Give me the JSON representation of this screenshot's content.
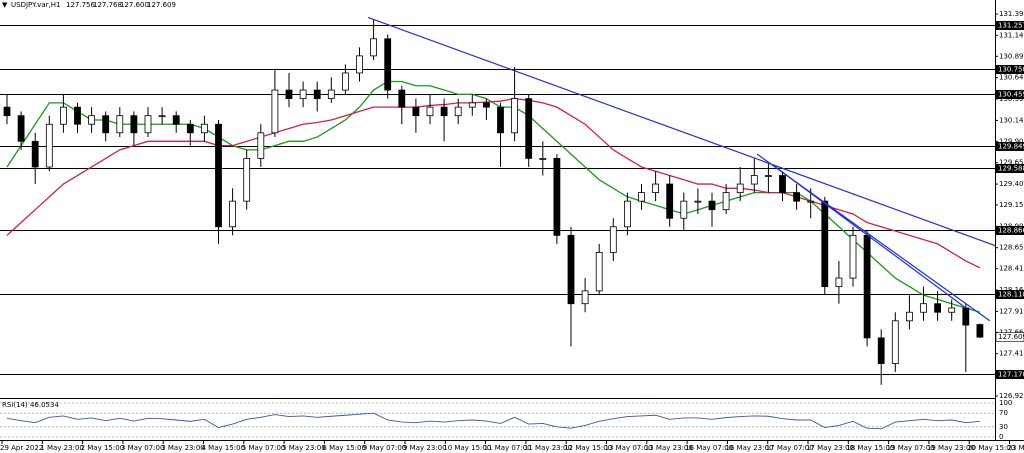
{
  "chart_data": {
    "type": "candlestick",
    "title": "USDJPY.var,H1",
    "ohlc_labels": [
      "127.756",
      "127.768",
      "127.600",
      "127.609"
    ],
    "candles": [
      [
        130.3,
        130.45,
        130.1,
        130.2
      ],
      [
        130.2,
        130.25,
        129.8,
        129.9
      ],
      [
        129.9,
        130.0,
        129.4,
        129.6
      ],
      [
        129.6,
        130.2,
        129.55,
        130.1
      ],
      [
        130.1,
        130.45,
        130.0,
        130.3
      ],
      [
        130.3,
        130.35,
        130.0,
        130.1
      ],
      [
        130.1,
        130.3,
        130.0,
        130.2
      ],
      [
        130.2,
        130.25,
        129.9,
        130.0
      ],
      [
        130.0,
        130.3,
        129.95,
        130.2
      ],
      [
        130.2,
        130.25,
        129.85,
        130.0
      ],
      [
        130.0,
        130.3,
        129.95,
        130.2
      ],
      [
        130.2,
        130.3,
        130.1,
        130.2
      ],
      [
        130.2,
        130.25,
        130.0,
        130.1
      ],
      [
        130.1,
        130.15,
        129.85,
        130.0
      ],
      [
        130.0,
        130.2,
        129.9,
        130.1
      ],
      [
        130.1,
        130.15,
        128.7,
        128.9
      ],
      [
        128.9,
        129.35,
        128.8,
        129.2
      ],
      [
        129.2,
        129.8,
        129.1,
        129.7
      ],
      [
        129.7,
        130.1,
        129.6,
        130.0
      ],
      [
        130.0,
        130.75,
        129.95,
        130.5
      ],
      [
        130.5,
        130.7,
        130.3,
        130.4
      ],
      [
        130.4,
        130.6,
        130.3,
        130.5
      ],
      [
        130.5,
        130.6,
        130.25,
        130.4
      ],
      [
        130.4,
        130.65,
        130.35,
        130.5
      ],
      [
        130.5,
        130.8,
        130.45,
        130.7
      ],
      [
        130.7,
        131.0,
        130.6,
        130.9
      ],
      [
        130.9,
        131.33,
        130.85,
        131.1
      ],
      [
        131.1,
        131.15,
        130.4,
        130.5
      ],
      [
        130.5,
        130.55,
        130.1,
        130.3
      ],
      [
        130.3,
        130.4,
        130.0,
        130.2
      ],
      [
        130.2,
        130.45,
        130.1,
        130.3
      ],
      [
        130.3,
        130.4,
        129.9,
        130.2
      ],
      [
        130.2,
        130.4,
        130.1,
        130.3
      ],
      [
        130.3,
        130.45,
        130.2,
        130.35
      ],
      [
        130.35,
        130.4,
        130.15,
        130.3
      ],
      [
        130.3,
        130.35,
        129.6,
        130.0
      ],
      [
        130.0,
        130.77,
        129.9,
        130.4
      ],
      [
        130.4,
        130.45,
        129.6,
        129.7
      ],
      [
        129.7,
        129.9,
        129.5,
        129.7
      ],
      [
        129.7,
        129.75,
        128.7,
        128.8
      ],
      [
        128.8,
        128.9,
        127.5,
        128.0
      ],
      [
        128.0,
        128.3,
        127.9,
        128.15
      ],
      [
        128.15,
        128.7,
        128.1,
        128.6
      ],
      [
        128.6,
        129.0,
        128.5,
        128.9
      ],
      [
        128.9,
        129.3,
        128.8,
        129.2
      ],
      [
        129.2,
        129.4,
        129.1,
        129.3
      ],
      [
        129.3,
        129.55,
        129.2,
        129.4
      ],
      [
        129.4,
        129.5,
        128.9,
        129.0
      ],
      [
        129.0,
        129.3,
        128.85,
        129.2
      ],
      [
        129.2,
        129.35,
        129.05,
        129.2
      ],
      [
        129.2,
        129.3,
        128.9,
        129.1
      ],
      [
        129.1,
        129.4,
        129.05,
        129.3
      ],
      [
        129.3,
        129.6,
        129.2,
        129.4
      ],
      [
        129.4,
        129.7,
        129.3,
        129.5
      ],
      [
        129.5,
        129.65,
        129.3,
        129.5
      ],
      [
        129.5,
        129.55,
        129.2,
        129.3
      ],
      [
        129.3,
        129.4,
        129.1,
        129.2
      ],
      [
        129.2,
        129.35,
        129.0,
        129.2
      ],
      [
        129.2,
        129.25,
        128.1,
        128.2
      ],
      [
        128.2,
        128.5,
        128.0,
        128.3
      ],
      [
        128.3,
        128.9,
        128.2,
        128.8
      ],
      [
        128.8,
        128.85,
        127.5,
        127.6
      ],
      [
        127.6,
        127.7,
        127.05,
        127.3
      ],
      [
        127.3,
        127.9,
        127.2,
        127.8
      ],
      [
        127.8,
        128.1,
        127.7,
        127.9
      ],
      [
        127.9,
        128.2,
        127.8,
        128.0
      ],
      [
        128.0,
        128.15,
        127.8,
        127.9
      ],
      [
        127.9,
        128.05,
        127.8,
        127.95
      ],
      [
        127.95,
        128.0,
        127.2,
        127.75
      ],
      [
        127.756,
        127.768,
        127.6,
        127.609
      ]
    ],
    "series": [
      {
        "color": "#1a9a1a",
        "values": [
          129.6,
          129.85,
          130.1,
          130.35,
          130.35,
          130.25,
          130.15,
          130.15,
          130.1,
          130.1,
          130.1,
          130.1,
          130.1,
          130.1,
          130.05,
          129.95,
          129.85,
          129.8,
          129.8,
          129.85,
          129.9,
          129.9,
          129.95,
          130.05,
          130.15,
          130.3,
          130.5,
          130.6,
          130.6,
          130.55,
          130.55,
          130.5,
          130.45,
          130.45,
          130.4,
          130.3,
          130.3,
          130.2,
          130.05,
          129.9,
          129.75,
          129.6,
          129.45,
          129.35,
          129.25,
          129.2,
          129.15,
          129.1,
          129.05,
          129.1,
          129.15,
          129.2,
          129.25,
          129.3,
          129.3,
          129.3,
          129.3,
          129.2,
          129.05,
          128.9,
          128.75,
          128.6,
          128.45,
          128.3,
          128.2,
          128.1,
          128.05,
          128.0,
          127.95,
          127.9
        ]
      },
      {
        "color": "#d0204a",
        "values": [
          128.8,
          128.95,
          129.1,
          129.25,
          129.4,
          129.5,
          129.6,
          129.7,
          129.8,
          129.85,
          129.9,
          129.9,
          129.9,
          129.9,
          129.9,
          129.85,
          129.85,
          129.9,
          129.95,
          130.0,
          130.05,
          130.1,
          130.12,
          130.15,
          130.2,
          130.25,
          130.3,
          130.3,
          130.3,
          130.3,
          130.32,
          130.33,
          130.35,
          130.35,
          130.36,
          130.37,
          130.4,
          130.38,
          130.35,
          130.3,
          130.2,
          130.1,
          129.95,
          129.8,
          129.7,
          129.6,
          129.55,
          129.5,
          129.45,
          129.4,
          129.4,
          129.35,
          129.35,
          129.33,
          129.3,
          129.3,
          129.25,
          129.2,
          129.15,
          129.1,
          129.05,
          128.95,
          128.9,
          128.85,
          128.8,
          128.75,
          128.7,
          128.6,
          128.5,
          128.42
        ]
      }
    ],
    "trendlines": [
      {
        "x": [
          25.6,
          70.1
        ],
        "y": [
          131.35,
          128.68
        ]
      },
      {
        "x": [
          53.2,
          69.7
        ],
        "y": [
          129.75,
          127.8
        ]
      },
      {
        "x": [
          54.5,
          68.0
        ],
        "y": [
          129.6,
          127.95
        ]
      }
    ],
    "trendline_color": "#1f2fd8",
    "levels": [
      131.257,
      {
        "value": 130.75,
        "label": "130.750"
      },
      130.459,
      129.849,
      129.588,
      128.866,
      128.118,
      127.178
    ],
    "ylim": [
      126.92,
      131.39
    ],
    "yticks": [
      {
        "value": 131.39,
        "label": "131.390"
      },
      {
        "value": 131.14,
        "label": "131.140"
      },
      130.895,
      130.645,
      130.395,
      130.145,
      {
        "value": 129.9,
        "label": "129.900"
      },
      {
        "value": 129.65,
        "label": "129.650"
      },
      {
        "value": 129.4,
        "label": "129.400"
      },
      129.155,
      128.905,
      128.655,
      {
        "value": 128.41,
        "label": "128.410"
      },
      {
        "value": 128.16,
        "label": "128.160"
      },
      {
        "value": 127.91,
        "label": "127.910"
      },
      127.665,
      127.415,
      127.165,
      {
        "value": 126.92,
        "label": "126.920"
      }
    ],
    "x_labels": [
      "29 Apr 2022",
      "1 May 23:00",
      "2 May 15:00",
      "3 May 07:00",
      "3 May 23:00",
      "4 May 15:00",
      "5 May 07:00",
      "5 May 23:00",
      "6 May 15:00",
      "9 May 07:00",
      "9 May 23:00",
      "10 May 15:00",
      "11 May 07:00",
      "11 May 23:00",
      "12 May 15:00",
      "13 May 07:00",
      "13 May 23:00",
      "16 May 07:00",
      "16 May 23:00",
      "17 May 07:00",
      "17 May 23:00",
      "18 May 15:00",
      "19 May 07:00",
      "19 May 23:00",
      "20 May 15:00",
      "23 May 07:00"
    ],
    "rsi": {
      "label": "RSI(14) 46.0534",
      "color": "#3a5aa0",
      "ylim": [
        0,
        100
      ],
      "yticks": [
        100,
        70,
        30,
        0
      ],
      "values": [
        55,
        48,
        42,
        58,
        62,
        52,
        56,
        48,
        55,
        47,
        55,
        54,
        50,
        46,
        52,
        28,
        38,
        52,
        58,
        66,
        60,
        62,
        58,
        61,
        64,
        67,
        70,
        50,
        44,
        42,
        47,
        44,
        48,
        50,
        47,
        40,
        58,
        38,
        40,
        30,
        26,
        34,
        46,
        54,
        60,
        62,
        64,
        52,
        56,
        56,
        52,
        57,
        60,
        62,
        61,
        54,
        50,
        50,
        28,
        34,
        46,
        26,
        24,
        44,
        48,
        52,
        48,
        50,
        42,
        46
      ]
    }
  }
}
